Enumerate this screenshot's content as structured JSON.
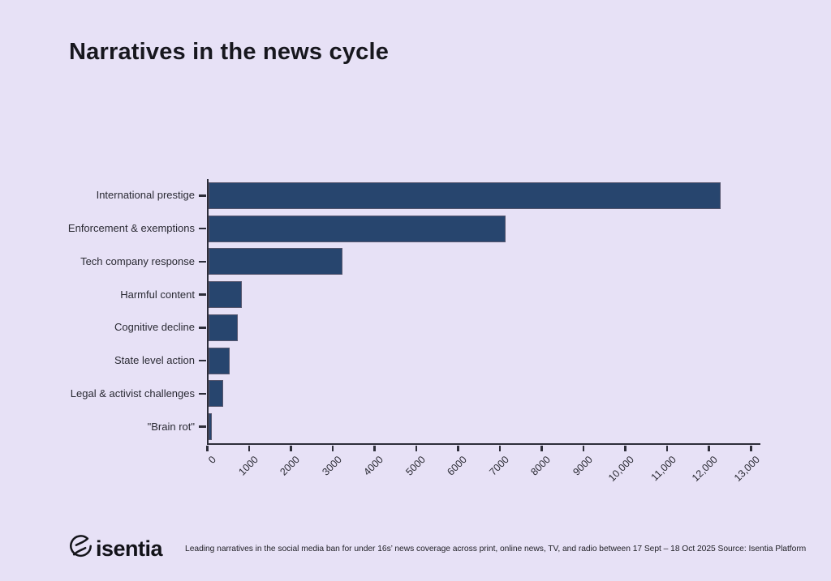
{
  "title": "Narratives in the news cycle",
  "chart_data": {
    "type": "bar",
    "orientation": "horizontal",
    "title": "Narratives in the news cycle",
    "categories": [
      "International prestige",
      "Enforcement & exemptions",
      "Tech company response",
      "Harmful content",
      "Cognitive decline",
      "State level action",
      "Legal & activist challenges",
      "\"Brain rot\""
    ],
    "values": [
      12250,
      7100,
      3200,
      800,
      700,
      500,
      350,
      80
    ],
    "xlabel": "",
    "ylabel": "",
    "xlim": [
      0,
      13000
    ],
    "xtick_values": [
      0,
      1000,
      2000,
      3000,
      4000,
      5000,
      6000,
      7000,
      8000,
      9000,
      10000,
      11000,
      12000,
      13000
    ],
    "xtick_labels": [
      "0",
      "1000",
      "2000",
      "3000",
      "4000",
      "5000",
      "6000",
      "7000",
      "8000",
      "9000",
      "10,000",
      "11,000",
      "12,000",
      "13,000"
    ],
    "grid": false,
    "legend": false,
    "bar_color": "#27456E",
    "bar_border_color": "#56566E",
    "axis_color": "#2E2E3A",
    "background": "#E7E1F6"
  },
  "footer": {
    "logo_text": "isentia",
    "logo_icon": "isentia-swirl-icon",
    "caption": "Leading narratives in the social media ban for under 16s’ news coverage across print, online news, TV, and radio between 17 Sept – 18 Oct 2025 Source: Isentia Platform"
  }
}
